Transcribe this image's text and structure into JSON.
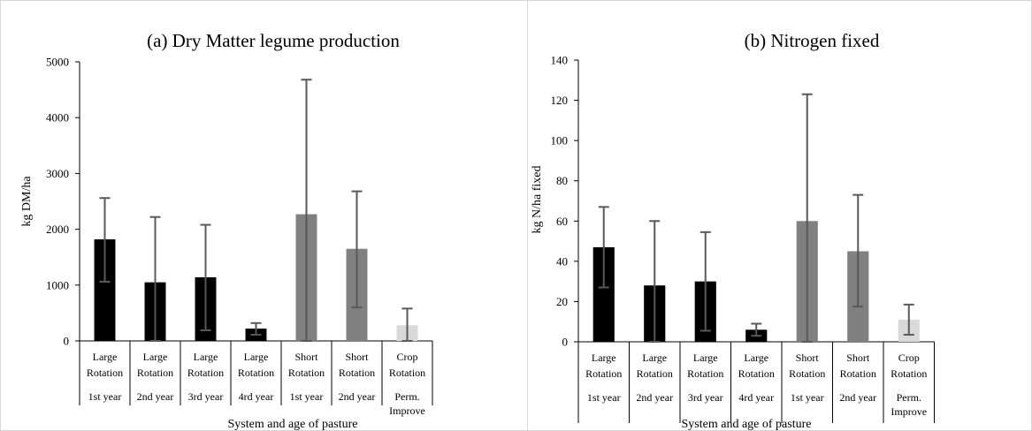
{
  "colors": {
    "large_rotation": "#000000",
    "short_rotation": "#808080",
    "crop_rotation": "#d9d9d9",
    "error_bar": "#595959",
    "axis": "#000000"
  },
  "categories": [
    {
      "lines": [
        "Large",
        "Rotation",
        "1st year"
      ],
      "group": "large"
    },
    {
      "lines": [
        "Large",
        "Rotation",
        "2nd year"
      ],
      "group": "large"
    },
    {
      "lines": [
        "Large",
        "Rotation",
        "3rd year"
      ],
      "group": "large"
    },
    {
      "lines": [
        "Large",
        "Rotation",
        "4rd year"
      ],
      "group": "large"
    },
    {
      "lines": [
        "Short",
        "Rotation",
        "1st year"
      ],
      "group": "short"
    },
    {
      "lines": [
        "Short",
        "Rotation",
        "2nd year"
      ],
      "group": "short"
    },
    {
      "lines": [
        "Crop",
        "Rotation",
        "Perm.",
        "Improve"
      ],
      "group": "crop"
    }
  ],
  "chart_data": [
    {
      "type": "bar",
      "title": "(a) Dry Matter legume production",
      "ylabel": "kg DM/ha",
      "xlabel": "System and age of pasture",
      "ylim": [
        0,
        5000
      ],
      "yticks": [
        "0",
        "1000",
        "2000",
        "3000",
        "4000",
        "5000"
      ],
      "values": [
        1820,
        1050,
        1140,
        220,
        2270,
        1650,
        280
      ],
      "error_low": [
        1060,
        0,
        190,
        110,
        0,
        600,
        0
      ],
      "error_high": [
        2560,
        2220,
        2080,
        320,
        4680,
        2680,
        580
      ],
      "grid": false,
      "legend": "none"
    },
    {
      "type": "bar",
      "title": "(b) Nitrogen fixed",
      "ylabel": "kg N/ha fixed",
      "xlabel": "System and age of pasture",
      "ylim": [
        0,
        140
      ],
      "yticks": [
        "0",
        "20",
        "40",
        "60",
        "80",
        "100",
        "120",
        "140"
      ],
      "values": [
        47,
        28,
        30,
        6,
        60,
        45,
        11
      ],
      "error_low": [
        27,
        0,
        5.5,
        3,
        0,
        17.5,
        3.5
      ],
      "error_high": [
        67,
        60,
        54.5,
        9,
        123,
        73,
        18.5
      ],
      "grid": false,
      "legend": "none"
    }
  ]
}
